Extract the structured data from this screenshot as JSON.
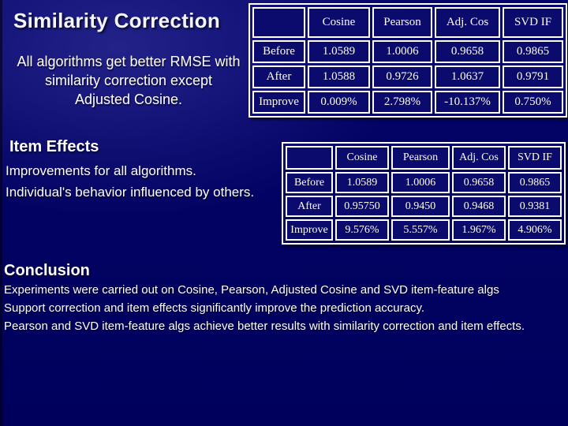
{
  "slide_title": "Similarity Correction",
  "intro_lines": [
    "All algorithms get better RMSE with",
    "similarity correction except",
    "Adjusted Cosine."
  ],
  "item_effects": {
    "heading": "Item Effects",
    "lines": [
      "Improvements for all algorithms.",
      "Individual's behavior influenced by others."
    ]
  },
  "conclusion": {
    "heading": "Conclusion",
    "lines": [
      "Experiments were carried out on Cosine, Pearson, Adjusted Cosine and SVD item-feature algs",
      "Support correction and item effects significantly improve the prediction accuracy.",
      "Pearson and SVD item-feature algs achieve better results with similarity correction and item effects."
    ]
  },
  "tables": [
    {
      "name": "similarity-correction-results",
      "columns": [
        "",
        "Cosine",
        "Pearson",
        "Adj. Cos",
        "SVD IF"
      ],
      "rows": [
        {
          "label": "Before",
          "values": [
            "1.0589",
            "1.0006",
            "0.9658",
            "0.9865"
          ]
        },
        {
          "label": "After",
          "values": [
            "1.0588",
            "0.9726",
            "1.0637",
            "0.9791"
          ]
        },
        {
          "label": "Improve",
          "values": [
            "0.009%",
            "2.798%",
            "-10.137%",
            "0.750%"
          ]
        }
      ]
    },
    {
      "name": "item-effects-results",
      "columns": [
        "",
        "Cosine",
        "Pearson",
        "Adj. Cos",
        "SVD IF"
      ],
      "rows": [
        {
          "label": "Before",
          "values": [
            "1.0589",
            "1.0006",
            "0.9658",
            "0.9865"
          ]
        },
        {
          "label": "After",
          "values": [
            "0.95750",
            "0.9450",
            "0.9468",
            "0.9381"
          ]
        },
        {
          "label": "Improve",
          "values": [
            "9.576%",
            "5.557%",
            "1.967%",
            "4.906%"
          ]
        }
      ]
    }
  ],
  "colors": {
    "background": "#00005f",
    "background_highlight": "#1b1b84",
    "text": "#ffffff",
    "table_border": "#ffffff",
    "table_cell_background": "#0b0b6d"
  }
}
